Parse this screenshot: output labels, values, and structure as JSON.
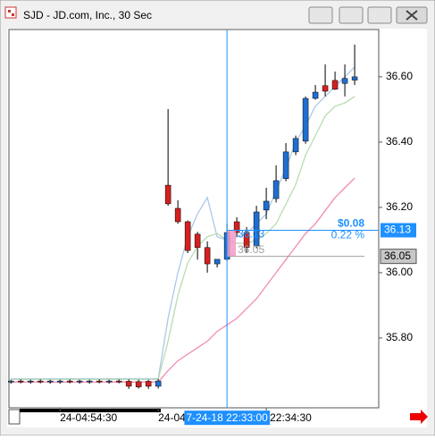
{
  "window_title": "SJD - JD.com, Inc., 30 Sec",
  "chart_data": {
    "type": "candlestick",
    "up_color": "#1f6fd1",
    "down_color": "#d42020",
    "xlim": [
      -0.2,
      37.45
    ],
    "ylim": [
      35.586,
      36.745
    ],
    "yticks": [
      {
        "value": 35.8,
        "label": "35.80"
      },
      {
        "value": 36.0,
        "label": "36.00"
      },
      {
        "value": 36.2,
        "label": "36.20"
      },
      {
        "value": 36.4,
        "label": "36.40"
      },
      {
        "value": 36.6,
        "label": "36.60"
      }
    ],
    "xticks": [
      {
        "value": 5,
        "label": "24-04:54:30"
      },
      {
        "value": 15,
        "label": "24-04"
      },
      {
        "value": 26,
        "label": "-22:34:30"
      }
    ],
    "open": [
      35.665,
      35.668,
      35.666,
      35.668,
      35.667,
      35.666,
      35.668,
      35.667,
      35.666,
      35.668,
      35.667,
      35.668,
      35.667,
      35.666,
      35.667,
      35.652,
      36.268,
      36.197,
      36.156,
      36.118,
      36.077,
      36.027,
      36.041,
      36.156,
      36.123,
      36.082,
      36.192,
      36.227,
      36.288,
      36.37,
      36.403,
      36.534,
      36.573,
      36.589,
      36.58,
      36.59
    ],
    "high": [
      35.672,
      35.673,
      35.672,
      35.673,
      35.672,
      35.672,
      35.673,
      35.672,
      35.672,
      35.673,
      35.672,
      35.673,
      35.673,
      35.672,
      35.672,
      35.674,
      36.501,
      36.222,
      36.16,
      36.125,
      36.096,
      36.04,
      36.151,
      36.17,
      36.14,
      36.205,
      36.26,
      36.329,
      36.397,
      36.42,
      36.54,
      36.575,
      36.638,
      36.616,
      36.638,
      36.699
    ],
    "low": [
      35.66,
      35.661,
      35.66,
      35.661,
      35.66,
      35.66,
      35.661,
      35.66,
      35.66,
      35.661,
      35.66,
      35.661,
      35.644,
      35.645,
      35.644,
      35.645,
      36.205,
      36.15,
      36.06,
      36.04,
      36.0,
      36.016,
      36.035,
      36.11,
      36.06,
      36.075,
      36.164,
      36.215,
      36.28,
      36.36,
      36.395,
      36.53,
      36.54,
      36.56,
      36.54,
      36.575
    ],
    "close": [
      35.668,
      35.666,
      35.668,
      35.667,
      35.668,
      35.668,
      35.667,
      35.668,
      35.668,
      35.667,
      35.668,
      35.666,
      35.652,
      35.65,
      35.652,
      35.668,
      36.211,
      36.156,
      36.068,
      36.077,
      36.027,
      36.041,
      36.123,
      36.123,
      36.077,
      36.186,
      36.219,
      36.282,
      36.37,
      36.411,
      36.534,
      36.553,
      36.556,
      36.562,
      36.595,
      36.6
    ],
    "series": [
      {
        "color": "#a9c9ea",
        "values": [
          35.675,
          35.675,
          35.675,
          35.675,
          35.675,
          35.675,
          35.675,
          35.675,
          35.675,
          35.675,
          35.675,
          35.675,
          35.675,
          35.675,
          35.675,
          35.675,
          35.86,
          36.0,
          36.11,
          36.18,
          36.23,
          36.11,
          36.1,
          36.11,
          36.12,
          36.15,
          36.18,
          36.25,
          36.32,
          36.4,
          36.45,
          36.51,
          36.54,
          36.57,
          36.6,
          36.63
        ]
      },
      {
        "color": "#b9dcb0",
        "values": [
          35.673,
          35.673,
          35.673,
          35.673,
          35.673,
          35.673,
          35.673,
          35.673,
          35.673,
          35.673,
          35.673,
          35.673,
          35.673,
          35.673,
          35.673,
          35.673,
          35.79,
          35.93,
          36.03,
          36.08,
          36.11,
          36.12,
          36.1,
          36.09,
          36.09,
          36.1,
          36.12,
          36.15,
          36.21,
          36.27,
          36.36,
          36.42,
          36.48,
          36.51,
          36.52,
          36.54
        ]
      },
      {
        "color": "#f08cb0",
        "values": [
          35.665,
          35.665,
          35.665,
          35.665,
          35.665,
          35.665,
          35.665,
          35.665,
          35.665,
          35.665,
          35.665,
          35.665,
          35.665,
          35.665,
          35.665,
          35.665,
          35.7,
          35.73,
          35.75,
          35.77,
          35.79,
          35.82,
          35.84,
          35.86,
          35.89,
          35.92,
          35.96,
          36.0,
          36.04,
          36.08,
          36.12,
          36.15,
          36.19,
          36.23,
          36.26,
          36.29
        ]
      }
    ],
    "crosshair": {
      "x": 22,
      "label": "7-24-18 22:33:00",
      "color": "#1e90ff"
    },
    "levels": [
      {
        "value": 36.13,
        "label": "36.13",
        "color": "#1e90ff"
      },
      {
        "value": 36.05,
        "label": "36.05",
        "color": "#a0a0a0"
      }
    ],
    "change": {
      "amount": "$0.08",
      "percent": "0.22 %"
    }
  }
}
